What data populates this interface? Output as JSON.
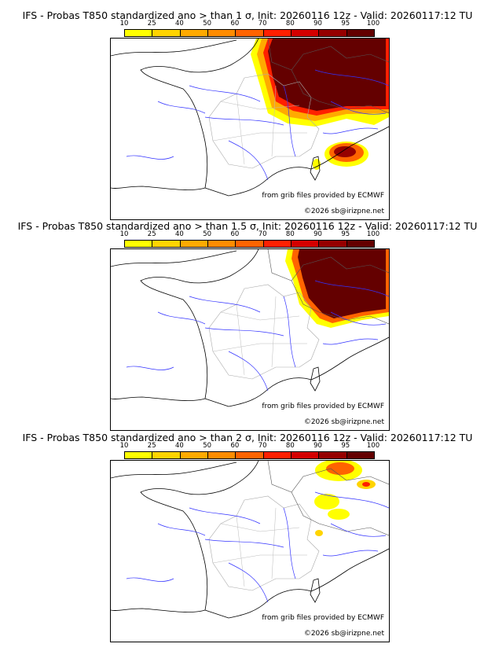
{
  "panels": [
    {
      "title": "IFS - Probas T850  standardized ano > than 1 σ, Init: 20260116 12z - Valid: 20260117:12 TU",
      "threshold": "1 σ"
    },
    {
      "title": "IFS - Probas T850  standardized ano > than 1.5 σ, Init: 20260116 12z - Valid: 20260117:12 TU",
      "threshold": "1.5 σ"
    },
    {
      "title": "IFS - Probas T850  standardized ano > than 2 σ, Init: 20260116 12z - Valid: 20260117:12 TU",
      "threshold": "2 σ"
    }
  ],
  "colorbar": {
    "ticks": [
      "10",
      "25",
      "40",
      "50",
      "60",
      "70",
      "80",
      "90",
      "95",
      "100"
    ],
    "colors": [
      "#ffff00",
      "#ffd400",
      "#ffaa00",
      "#ff8c00",
      "#ff6400",
      "#ff2000",
      "#d40000",
      "#960000",
      "#640000"
    ]
  },
  "credits": {
    "source": "from grib files provided by ECMWF",
    "copyright": "©2026 sb@irizpne.net"
  }
}
